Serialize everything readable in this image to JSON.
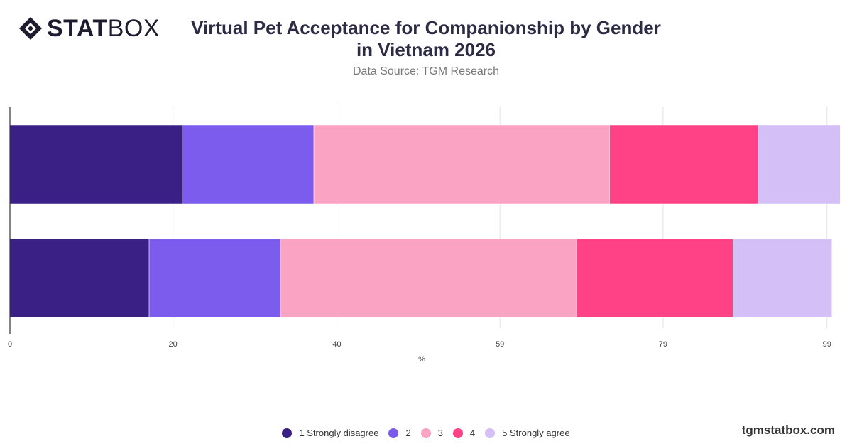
{
  "brand": {
    "logo_bold": "STAT",
    "logo_light": "BOX",
    "footer": "tgmstatbox.com"
  },
  "title_line1": "Virtual Pet Acceptance for Companionship by Gender",
  "title_line2": "in Vietnam 2026",
  "subtitle": "Data Source: TGM Research",
  "colors": [
    "#3a1f85",
    "#7b5cec",
    "#fba3c3",
    "#ff4286",
    "#d4bff7"
  ],
  "chart_data": {
    "type": "bar",
    "orientation": "horizontal",
    "stacked": true,
    "xlabel": "%",
    "xlim": [
      0,
      100
    ],
    "x_ticks": [
      "0",
      "20",
      "40",
      "59",
      "79",
      "99"
    ],
    "x_tick_values": [
      0,
      19.8,
      39.7,
      59.5,
      79.3,
      99.2
    ],
    "grid": true,
    "legend_position": "bottom",
    "categories": [
      "",
      ""
    ],
    "series": [
      {
        "name": "1 Strongly disagree",
        "values": [
          20.9,
          16.9
        ]
      },
      {
        "name": "2",
        "values": [
          16.0,
          16.0
        ]
      },
      {
        "name": "3",
        "values": [
          35.9,
          35.9
        ]
      },
      {
        "name": "4",
        "values": [
          18.0,
          19.0
        ]
      },
      {
        "name": "5 Strongly agree",
        "values": [
          10.0,
          12.0
        ]
      }
    ]
  }
}
